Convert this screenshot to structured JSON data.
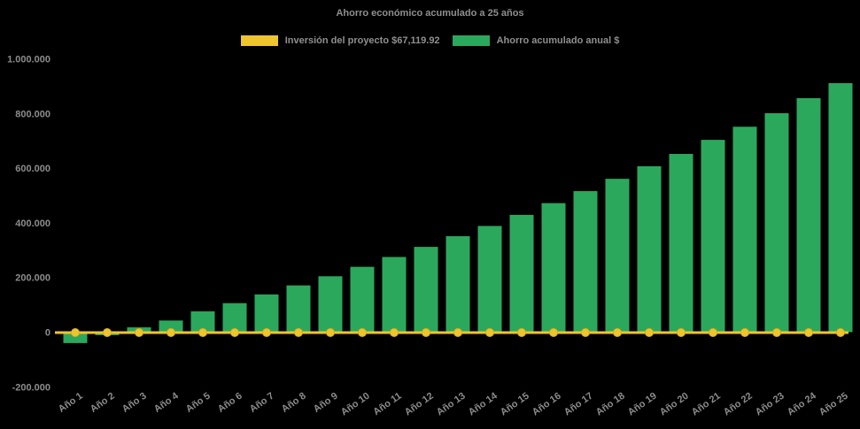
{
  "chart": {
    "title": "Ahorro económico acumulado a 25 años",
    "background": "#000000",
    "text_color": "#8f8f8f",
    "axis_label_color": "#8c8c8c",
    "legend": [
      {
        "label": "Inversión del proyecto $67,119.92",
        "color": "#EFC52F",
        "type": "line"
      },
      {
        "label": "Ahorro acumulado anual $",
        "color": "#2BA85C",
        "type": "bar"
      }
    ]
  },
  "chart_data": {
    "type": "bar",
    "title": "Ahorro económico acumulado a 25 años",
    "categories": [
      "Año 1",
      "Año 2",
      "Año 3",
      "Año 4",
      "Año 5",
      "Año 6",
      "Año 7",
      "Año 8",
      "Año 9",
      "Año 10",
      "Año 11",
      "Año 12",
      "Año 13",
      "Año 14",
      "Año 15",
      "Año 16",
      "Año 17",
      "Año 18",
      "Año 19",
      "Año 20",
      "Año 21",
      "Año 22",
      "Año 23",
      "Año 24",
      "Año 25"
    ],
    "series": [
      {
        "name": "Inversión del proyecto $67,119.92",
        "type": "line",
        "color": "#EFC52F",
        "marker": "circle",
        "investment_amount": 67119.92,
        "values": [
          0,
          0,
          0,
          0,
          0,
          0,
          0,
          0,
          0,
          0,
          0,
          0,
          0,
          0,
          0,
          0,
          0,
          0,
          0,
          0,
          0,
          0,
          0,
          0,
          0
        ]
      },
      {
        "name": "Ahorro acumulado anual $",
        "type": "bar",
        "color": "#2BA85C",
        "values": [
          -40000,
          -11000,
          17500,
          42500,
          76000,
          106000,
          138000,
          171000,
          204500,
          239000,
          275000,
          312000,
          351000,
          388500,
          429000,
          472000,
          516000,
          561000,
          607000,
          652000,
          703500,
          751500,
          801000,
          856000,
          911000
        ]
      }
    ],
    "xlabel": "",
    "ylabel": "",
    "ylim": [
      -200000,
      1000000
    ],
    "ytick_values": [
      1000000,
      800000,
      600000,
      400000,
      200000,
      0,
      -200000
    ],
    "ytick_labels": [
      "1.000.000",
      "800.000",
      "600.000",
      "400.000",
      "200.000",
      "0",
      "-200.000"
    ],
    "grid": false,
    "legend_position": "top",
    "x_label_rotation_deg": -35
  }
}
